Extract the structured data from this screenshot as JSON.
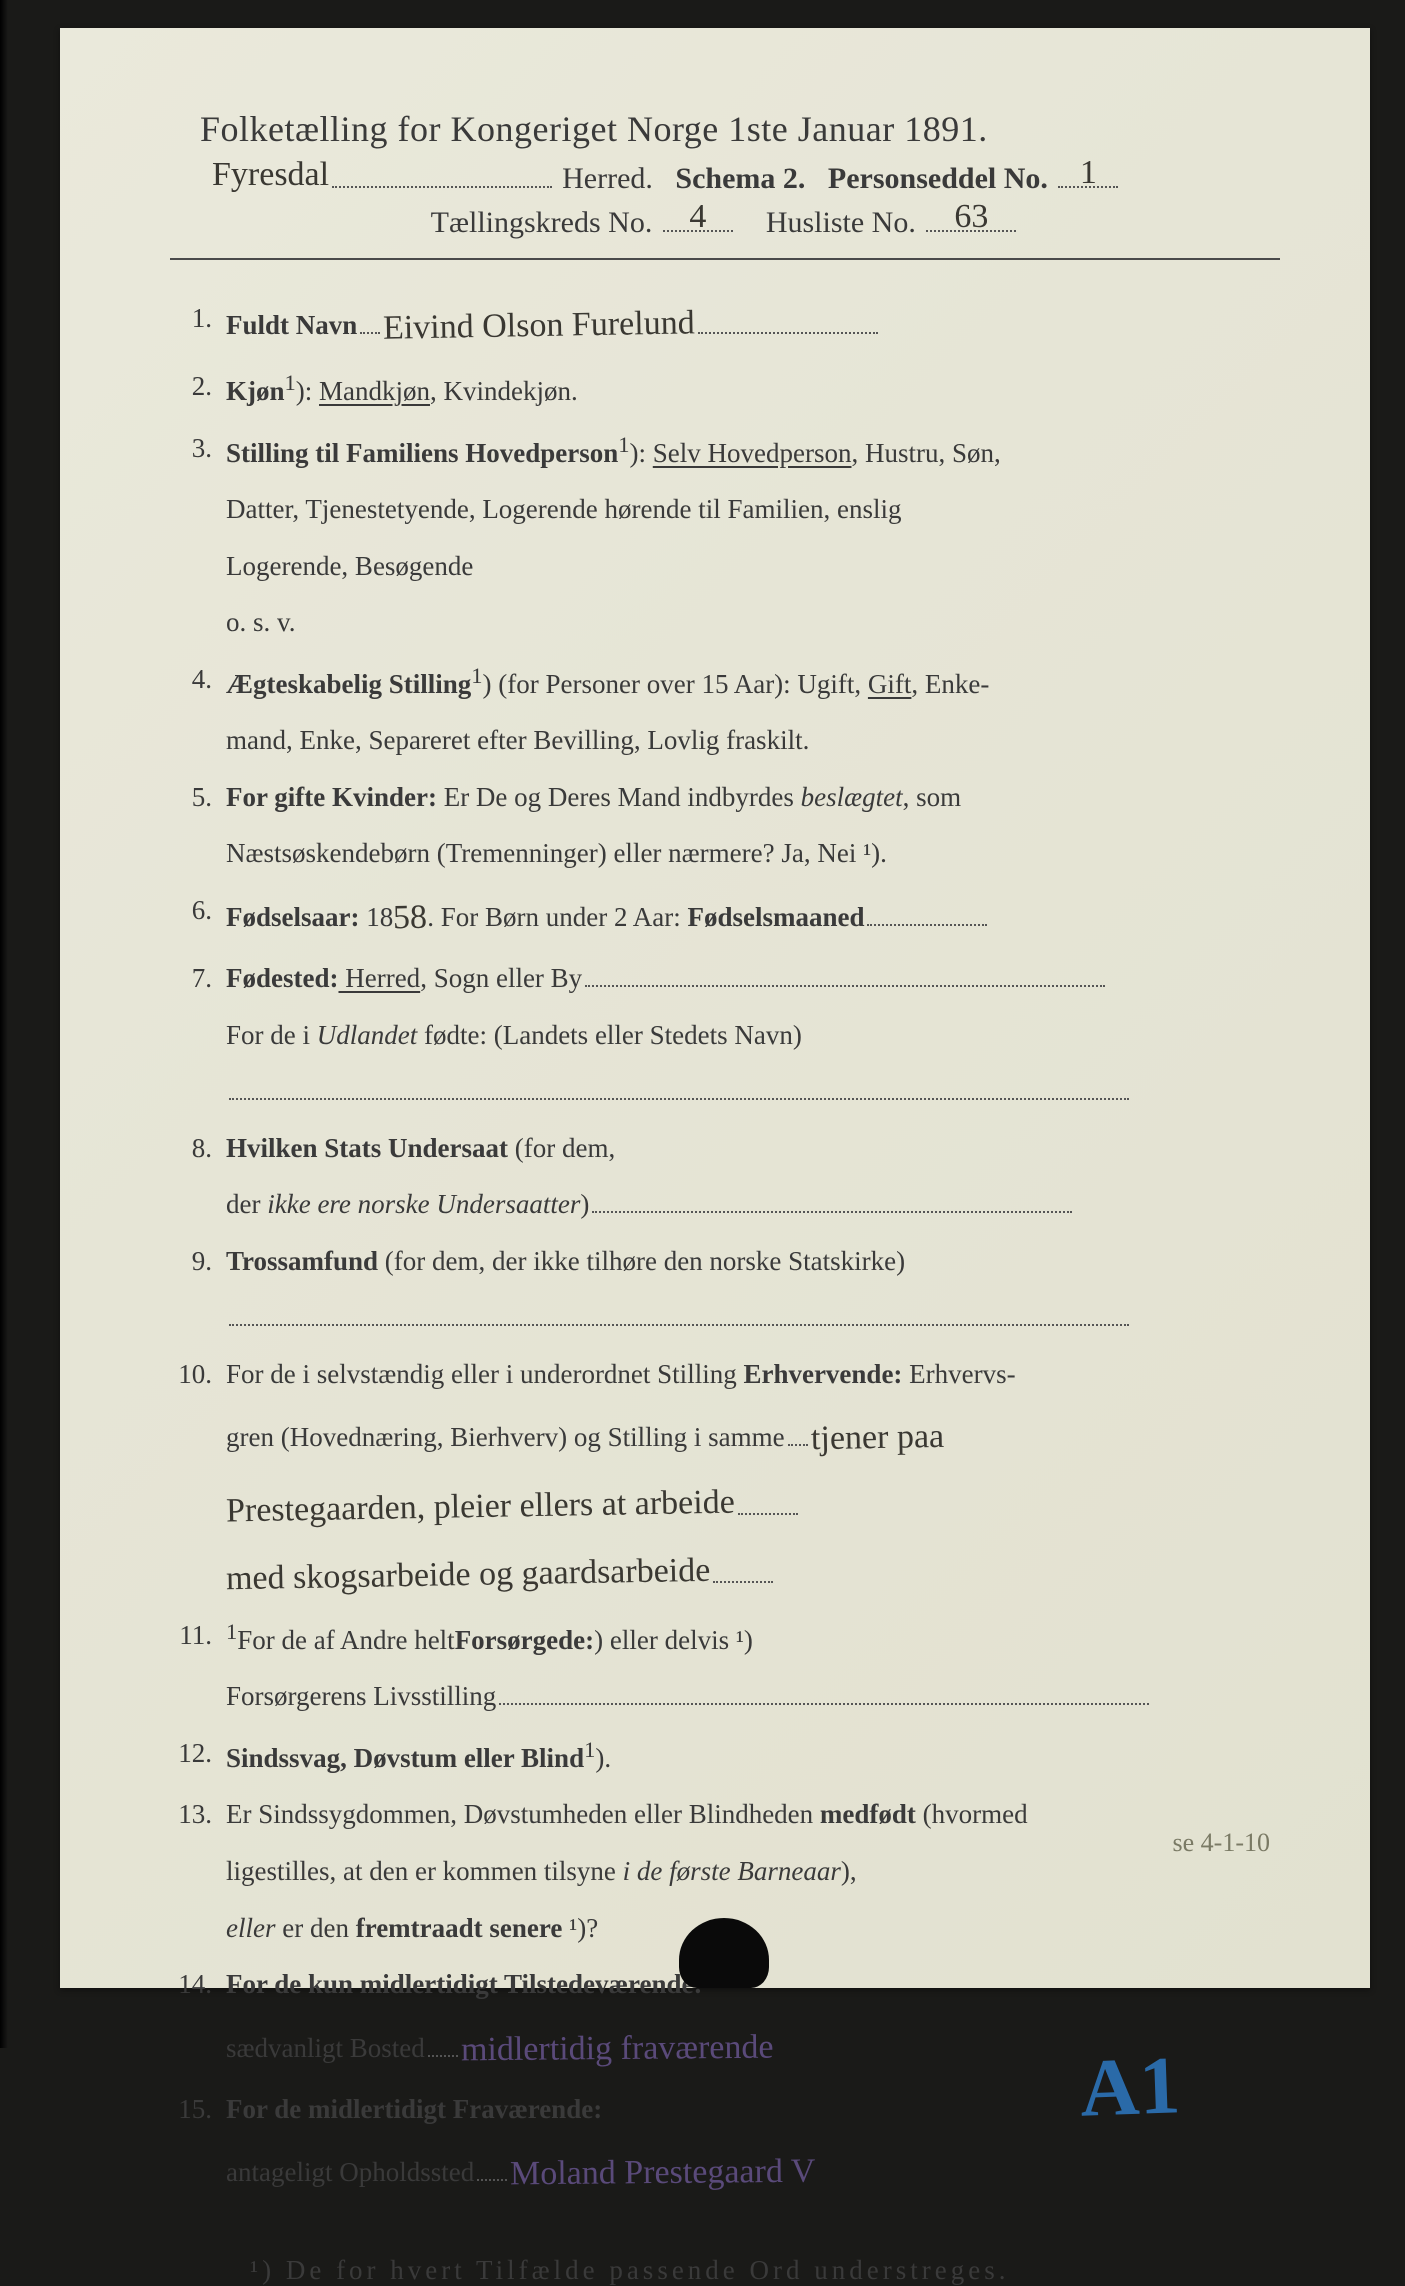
{
  "colors": {
    "paper": "#e6e5d6",
    "ink_print": "#3a3a3a",
    "ink_handwritten": "#3a3832",
    "ink_handwritten_purple": "#5a4a7a",
    "ink_handwritten_blue": "#2a6aa8",
    "background": "#1a1a18"
  },
  "typography": {
    "title_fontsize": 36,
    "body_fontsize": 27,
    "handwriting_fontsize": 34,
    "blue_mark_fontsize": 82,
    "footnote_letterspacing": 4
  },
  "header": {
    "title": "Folketælling for Kongeriget Norge 1ste Januar 1891.",
    "herred_handwritten": "Fyresdal",
    "herred_label": "Herred.",
    "schema_label": "Schema 2.",
    "personseddel_label": "Personseddel No.",
    "personseddel_no": "1",
    "kreds_label": "Tællingskreds No.",
    "kreds_no": "4",
    "husliste_label": "Husliste No.",
    "husliste_no": "63"
  },
  "items": [
    {
      "n": "1.",
      "label": "Fuldt Navn",
      "value_hand": "Eivind Olson Furelund"
    },
    {
      "n": "2.",
      "label": "Kjøn",
      "sup": "1",
      "rest": "): ",
      "opt_under": "Mandkjøn",
      "rest2": ", Kvindekjøn."
    },
    {
      "n": "3.",
      "label": "Stilling til Familiens Hovedperson",
      "sup": "1",
      "rest": "): ",
      "opt_under": "Selv Hovedperson",
      "rest2": ", Hustru, Søn,",
      "cont": [
        "Datter, Tjenestetyende, Logerende hørende til Familien, enslig",
        "Logerende, Besøgende",
        "o. s. v."
      ]
    },
    {
      "n": "4.",
      "label": "Ægteskabelig Stilling",
      "sup": "1",
      "rest": ") (for Personer over 15 Aar): Ugift, ",
      "opt_under": "Gift",
      "rest2": ", Enke-",
      "cont": [
        "mand, Enke, Separeret efter Bevilling, Lovlig fraskilt."
      ]
    },
    {
      "n": "5.",
      "label": "For gifte Kvinder:",
      "rest_plain": " Er De og Deres Mand indbyrdes ",
      "rest_italic": "beslægtet",
      "rest3": ", som",
      "cont": [
        "Næstsøskendebørn (Tremenninger) eller nærmere?  Ja, Nei ¹)."
      ]
    },
    {
      "n": "6.",
      "label": "Fødselsaar:",
      "rest_plain": " 18",
      "inline_hand": "58",
      "rest3": ".   For Børn under 2 Aar: ",
      "label2": "Fødselsmaaned",
      "dotlen": 120
    },
    {
      "n": "7.",
      "label": "Fødested:",
      "opt_under": " Herred",
      "rest2": ", Sogn eller By",
      "dotlen": 520,
      "cont_plain": "For de i ",
      "cont_italic": "Udlandet",
      "cont_rest": " fødte: (Landets eller Stedets Navn)",
      "cont_dotline": 900
    },
    {
      "n": "8.",
      "label": "Hvilken Stats Undersaat",
      "rest_plain": " (for dem,",
      "cont_plain": "der ",
      "cont_italic": "ikke ere norske Undersaatter",
      "cont_rest": ")",
      "cont_dot_after": 480
    },
    {
      "n": "9.",
      "label": "Trossamfund",
      "rest_plain": "  (for dem, der ikke tilhøre den norske Statskirke)",
      "cont_dotline": 900
    },
    {
      "n": "10.",
      "rest_plain": "For de i selvstændig eller i underordnet Stilling ",
      "label_tail": "Erhvervende:",
      "rest3": " Erhvervs-",
      "cont": [
        "gren (Hovednæring, Bierhverv) og Stilling i samme"
      ],
      "hand_lines": [
        "tjener paa",
        "Prestegaarden, pleier ellers at arbeide",
        "med skogsarbeide og gaardsarbeide"
      ]
    },
    {
      "n": "11.",
      "rest_plain": "For de af Andre helt",
      "sup": "1",
      "rest2": ") eller delvis ¹) ",
      "label_tail": "Forsørgede:",
      "cont_plain": "Forsørgerens Livsstilling",
      "cont_dot_after": 650
    },
    {
      "n": "12.",
      "label": "Sindssvag, Døvstum eller Blind",
      "sup": "1",
      "rest": ")."
    },
    {
      "n": "13.",
      "rest_plain": "Er Sindssygdommen, Døvstumheden eller Blindheden ",
      "label_tail": "medfødt",
      "rest3": " (hvormed",
      "cont": [
        "ligestilles, at den er kommen tilsyne "
      ],
      "cont_italic_inline": "i de første Barneaar",
      "cont_tail": "),",
      "cont2_italic": "eller",
      "cont2_rest": " er den ",
      "cont2_bold": "fremtraadt senere",
      "cont2_tail": " ¹)?"
    },
    {
      "n": "14.",
      "label": "For de kun midlertidigt Tilstedeværende:",
      "cont_plain": "sædvanligt Bosted",
      "cont_hand_purple": "midlertidig fraværende",
      "blue_mark": "A1"
    },
    {
      "n": "15.",
      "label": "For de midlertidigt Fraværende:",
      "cont_plain": "antageligt Opholdssted",
      "cont_hand_purple": "Moland Prestegaard V"
    }
  ],
  "footnote": "¹) De for hvert Tilfælde passende Ord understreges.",
  "margin_note": "se 4-1-10"
}
